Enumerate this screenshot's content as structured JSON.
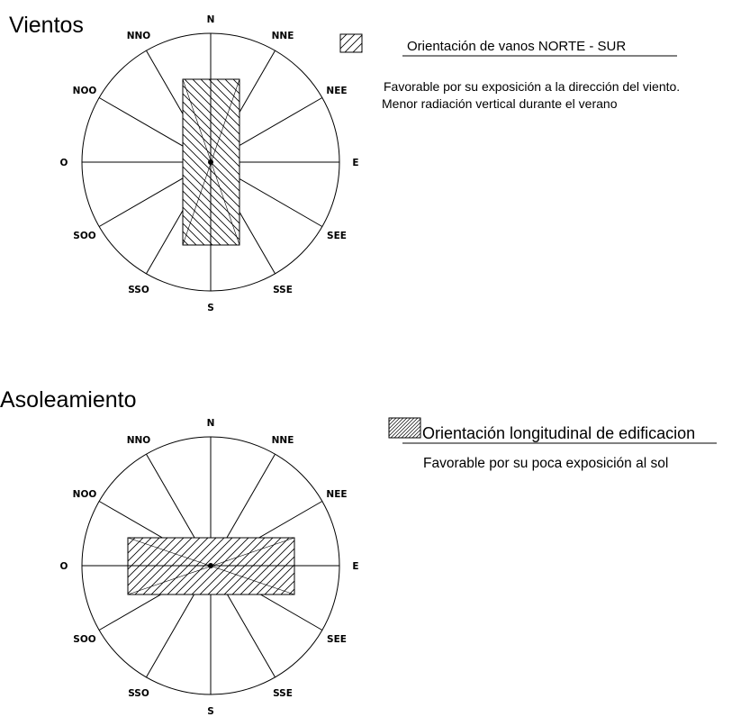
{
  "sections": [
    {
      "title": "Vientos",
      "orientation": "vertical",
      "compass_labels": {
        "n": "N",
        "nne": "NNE",
        "nee": "NEE",
        "e": "E",
        "see": "SEE",
        "sse": "SSE",
        "s": "S",
        "sso": "SSO",
        "soo": "SOO",
        "o": "O",
        "noo": "NOO",
        "nno": "NNO"
      },
      "legend": {
        "title": "Orientación de vanos NORTE - SUR",
        "notes": [
          "Favorable por su exposición a la dirección del viento.",
          "Menor radiación vertical durante el verano"
        ]
      }
    },
    {
      "title": "Asoleamiento",
      "orientation": "horizontal",
      "compass_labels": {
        "n": "N",
        "nne": "NNE",
        "nee": "NEE",
        "e": "E",
        "see": "SEE",
        "sse": "SSE",
        "s": "S",
        "sso": "SSO",
        "soo": "SOO",
        "o": "O",
        "noo": "NOO",
        "nno": "NNO"
      },
      "legend": {
        "title": "Orientación longitudinal de edificacion",
        "notes": [
          "Favorable por su poca exposición al sol"
        ]
      }
    }
  ],
  "colors": {
    "line": "#000000",
    "background": "#ffffff"
  }
}
